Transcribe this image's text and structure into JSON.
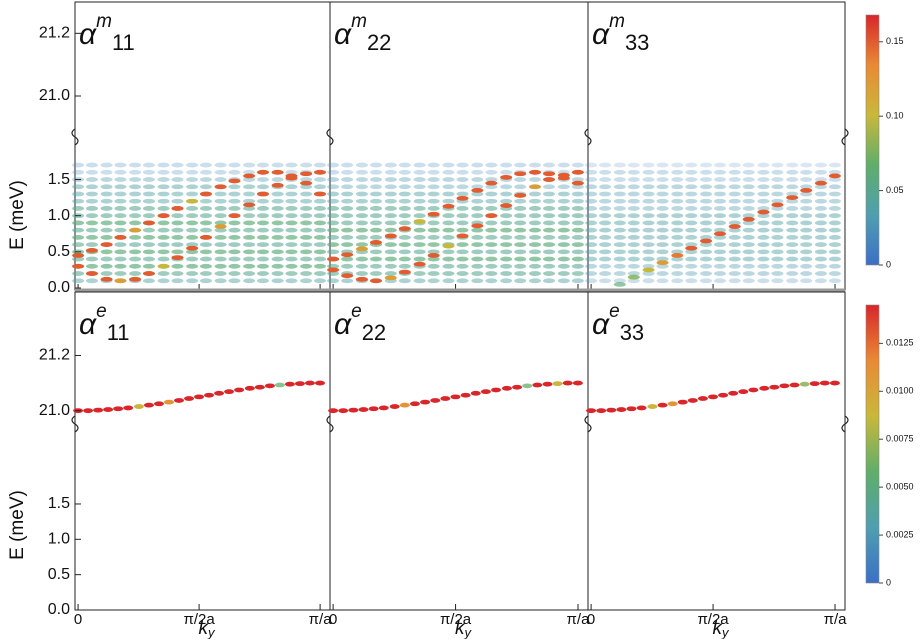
{
  "chart_data": {
    "type": "spectrum",
    "colormap": [
      "#3b6fc6",
      "#4f9fb0",
      "#5fae6a",
      "#c9b83a",
      "#e98a35",
      "#d8262a"
    ],
    "xlabel": "k",
    "xlabel_sub": "y",
    "ylabel": "E (meV)",
    "xlim": [
      -0.04,
      3.27
    ],
    "xticks": [
      0,
      {
        "value": 1.5708,
        "label": "π/2a"
      },
      {
        "value": 3.1416,
        "label": "π/a"
      }
    ],
    "rows": [
      {
        "upper_ylim": [
          20.85,
          21.3
        ],
        "upper_yticks": [
          {
            "value": 21,
            "label": "21.0"
          },
          21.2
        ],
        "lower_ylim": [
          0,
          1.95
        ],
        "lower_yticks": [
          {
            "value": 0,
            "label": "0.0"
          },
          0.5,
          {
            "value": 1,
            "label": "1.0"
          },
          1.5
        ],
        "colorbar": {
          "lim": [
            0,
            0.168
          ],
          "ticks": [
            0,
            0.05,
            {
              "value": 0.1,
              "label": "0.10"
            },
            0.15
          ]
        },
        "k": [
          0,
          0.18,
          0.37,
          0.55,
          0.74,
          0.92,
          1.11,
          1.29,
          1.48,
          1.66,
          1.85,
          2.03,
          2.22,
          2.4,
          2.59,
          2.77,
          2.96,
          3.14
        ],
        "panels": [
          {
            "base": "α",
            "sup": "m",
            "sub": "11",
            "levels": {
              "E": [
                0.1,
                0.2,
                0.3,
                0.4,
                0.5,
                0.6,
                0.7,
                0.8,
                0.9,
                1.0,
                1.1,
                1.2,
                1.3,
                1.4,
                1.5,
                1.6,
                1.7
              ],
              "intensity": [
                0.04,
                0.05,
                0.06,
                0.05,
                0.06,
                0.05,
                0.06,
                0.05,
                0.06,
                0.05,
                0.05,
                0.04,
                0.04,
                0.04,
                0.03,
                0.02,
                0.02
              ]
            },
            "bands": [
              {
                "E": [
                  0.45,
                  0.52,
                  0.6,
                  0.7,
                  0.8,
                  0.9,
                  1.0,
                  1.1,
                  1.2,
                  1.3,
                  1.4,
                  1.48,
                  1.55,
                  1.6,
                  1.6,
                  1.55,
                  1.45,
                  1.3
                ],
                "intensity": [
                  0.15,
                  0.15,
                  0.15,
                  0.15,
                  0.12,
                  0.15,
                  0.15,
                  0.15,
                  0.1,
                  0.15,
                  0.15,
                  0.15,
                  0.15,
                  0.15,
                  0.15,
                  0.15,
                  0.15,
                  0.15
                ]
              },
              {
                "E": [
                  0.3,
                  0.2,
                  0.12,
                  0.1,
                  0.12,
                  0.2,
                  0.3,
                  0.42,
                  0.55,
                  0.7,
                  0.85,
                  1.0,
                  1.15,
                  1.3,
                  1.42,
                  1.52,
                  1.58,
                  1.6
                ],
                "intensity": [
                  0.15,
                  0.15,
                  0.15,
                  0.12,
                  0.15,
                  0.15,
                  0.1,
                  0.15,
                  0.15,
                  0.15,
                  0.12,
                  0.15,
                  0.15,
                  0.15,
                  0.15,
                  0.15,
                  0.15,
                  0.15
                ]
              }
            ]
          },
          {
            "base": "α",
            "sup": "m",
            "sub": "22",
            "levels": {
              "E": [
                0.1,
                0.2,
                0.3,
                0.4,
                0.5,
                0.6,
                0.7,
                0.8,
                0.9,
                1.0,
                1.1,
                1.2,
                1.3,
                1.4,
                1.5,
                1.6,
                1.7
              ],
              "intensity": [
                0.04,
                0.05,
                0.05,
                0.06,
                0.05,
                0.06,
                0.05,
                0.06,
                0.05,
                0.05,
                0.05,
                0.04,
                0.04,
                0.03,
                0.03,
                0.02,
                0.02
              ]
            },
            "bands": [
              {
                "E": [
                  0.4,
                  0.46,
                  0.54,
                  0.63,
                  0.72,
                  0.82,
                  0.92,
                  1.02,
                  1.13,
                  1.24,
                  1.35,
                  1.45,
                  1.53,
                  1.58,
                  1.6,
                  1.58,
                  1.52,
                  1.45
                ],
                "intensity": [
                  0.15,
                  0.15,
                  0.12,
                  0.15,
                  0.15,
                  0.15,
                  0.1,
                  0.15,
                  0.15,
                  0.15,
                  0.15,
                  0.15,
                  0.15,
                  0.15,
                  0.15,
                  0.15,
                  0.15,
                  0.15
                ]
              },
              {
                "E": [
                  0.25,
                  0.17,
                  0.12,
                  0.1,
                  0.14,
                  0.22,
                  0.33,
                  0.45,
                  0.58,
                  0.72,
                  0.86,
                  1.0,
                  1.14,
                  1.28,
                  1.4,
                  1.5,
                  1.56,
                  1.6
                ],
                "intensity": [
                  0.15,
                  0.15,
                  0.15,
                  0.15,
                  0.12,
                  0.15,
                  0.15,
                  0.15,
                  0.1,
                  0.15,
                  0.15,
                  0.15,
                  0.15,
                  0.15,
                  0.12,
                  0.15,
                  0.15,
                  0.15
                ]
              }
            ]
          },
          {
            "base": "α",
            "sup": "m",
            "sub": "33",
            "levels": {
              "E": [
                0.1,
                0.2,
                0.3,
                0.4,
                0.5,
                0.6,
                0.7,
                0.8,
                0.9,
                1.0,
                1.1,
                1.2,
                1.3,
                1.4,
                1.5,
                1.6,
                1.7
              ],
              "intensity": [
                0.02,
                0.03,
                0.03,
                0.04,
                0.04,
                0.04,
                0.04,
                0.04,
                0.04,
                0.04,
                0.03,
                0.03,
                0.03,
                0.03,
                0.02,
                0.02,
                0.01
              ]
            },
            "bands": [
              {
                "E": [
                  null,
                  null,
                  0.05,
                  0.15,
                  0.25,
                  0.35,
                  0.45,
                  0.55,
                  0.65,
                  0.75,
                  0.85,
                  0.95,
                  1.05,
                  1.15,
                  1.25,
                  1.35,
                  1.45,
                  1.55
                ],
                "intensity": [
                  null,
                  null,
                  0.06,
                  0.08,
                  0.1,
                  0.12,
                  0.14,
                  0.15,
                  0.15,
                  0.15,
                  0.15,
                  0.15,
                  0.15,
                  0.15,
                  0.15,
                  0.15,
                  0.15,
                  0.15
                ]
              }
            ]
          }
        ]
      },
      {
        "upper_ylim": [
          20.93,
          21.43
        ],
        "upper_yticks": [
          {
            "value": 21,
            "label": "21.0"
          },
          21.2
        ],
        "lower_ylim": [
          0,
          2.49
        ],
        "lower_yticks": [
          {
            "value": 0,
            "label": "0.0"
          },
          0.5,
          {
            "value": 1,
            "label": "1.0"
          },
          1.5
        ],
        "colorbar": {
          "lim": [
            0,
            0.0145
          ],
          "ticks": [
            0,
            0.0025,
            {
              "value": 0.005,
              "label": "0.0050"
            },
            0.0075,
            {
              "value": 0.01,
              "label": "0.0100"
            },
            0.0125
          ]
        },
        "k": [
          0,
          0.13,
          0.26,
          0.39,
          0.52,
          0.65,
          0.79,
          0.92,
          1.05,
          1.18,
          1.31,
          1.44,
          1.57,
          1.7,
          1.83,
          1.96,
          2.09,
          2.23,
          2.36,
          2.49,
          2.62,
          2.75,
          2.88,
          3.01,
          3.14
        ],
        "panels": [
          {
            "base": "α",
            "sup": "e",
            "sub": "11",
            "bands": [
              {
                "E": [
                  21.0,
                  21.0,
                  21.002,
                  21.004,
                  21.007,
                  21.01,
                  21.015,
                  21.02,
                  21.025,
                  21.031,
                  21.037,
                  21.044,
                  21.05,
                  21.056,
                  21.063,
                  21.069,
                  21.075,
                  21.081,
                  21.085,
                  21.09,
                  21.093,
                  21.096,
                  21.098,
                  21.1,
                  21.1
                ],
                "intensity": [
                  0.0145,
                  0.0145,
                  0.0145,
                  0.0145,
                  0.0145,
                  0.0145,
                  0.009,
                  0.0145,
                  0.0145,
                  0.011,
                  0.0145,
                  0.0145,
                  0.0145,
                  0.0145,
                  0.0145,
                  0.0145,
                  0.0145,
                  0.0145,
                  0.0145,
                  0.0145,
                  0.006,
                  0.0145,
                  0.0145,
                  0.0145,
                  0.0145
                ]
              }
            ]
          },
          {
            "base": "α",
            "sup": "e",
            "sub": "22",
            "bands": [
              {
                "E": [
                  21.0,
                  21.0,
                  21.002,
                  21.004,
                  21.007,
                  21.01,
                  21.015,
                  21.02,
                  21.025,
                  21.031,
                  21.037,
                  21.044,
                  21.05,
                  21.056,
                  21.063,
                  21.069,
                  21.075,
                  21.081,
                  21.085,
                  21.09,
                  21.093,
                  21.096,
                  21.098,
                  21.1,
                  21.1
                ],
                "intensity": [
                  0.0145,
                  0.0145,
                  0.0145,
                  0.0145,
                  0.0145,
                  0.0145,
                  0.0145,
                  0.011,
                  0.0145,
                  0.0145,
                  0.0145,
                  0.0145,
                  0.0145,
                  0.0145,
                  0.0145,
                  0.0145,
                  0.0145,
                  0.0145,
                  0.0145,
                  0.006,
                  0.0145,
                  0.0145,
                  0.009,
                  0.0145,
                  0.0145
                ]
              }
            ]
          },
          {
            "base": "α",
            "sup": "e",
            "sub": "33",
            "bands": [
              {
                "E": [
                  21.0,
                  21.0,
                  21.002,
                  21.004,
                  21.007,
                  21.01,
                  21.015,
                  21.02,
                  21.025,
                  21.031,
                  21.037,
                  21.044,
                  21.05,
                  21.056,
                  21.063,
                  21.069,
                  21.075,
                  21.081,
                  21.085,
                  21.09,
                  21.093,
                  21.096,
                  21.098,
                  21.1,
                  21.1
                ],
                "intensity": [
                  0.0145,
                  0.0145,
                  0.0145,
                  0.0145,
                  0.0145,
                  0.0145,
                  0.009,
                  0.0145,
                  0.011,
                  0.0145,
                  0.0145,
                  0.0145,
                  0.0145,
                  0.0145,
                  0.0145,
                  0.0145,
                  0.0145,
                  0.0145,
                  0.0145,
                  0.0145,
                  0.0145,
                  0.007,
                  0.0145,
                  0.0145,
                  0.0145
                ]
              }
            ]
          }
        ]
      }
    ]
  }
}
